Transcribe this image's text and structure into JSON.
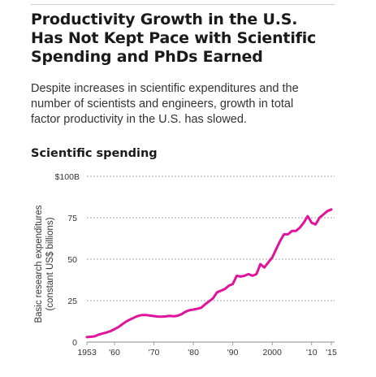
{
  "header": {
    "title_lines": [
      "Productivity Growth in the U.S.",
      "Has Not Kept Pace with Scientific",
      "Spending and PhDs Earned"
    ],
    "subtitle_lines": [
      "Despite increases in scientific expenditures and the",
      "number of scientists and engineers, growth in total",
      "factor productivity in the U.S. has slowed."
    ]
  },
  "colors": {
    "line": "#e0139b",
    "grid": "#888888",
    "text": "#333333"
  },
  "chart_data": {
    "type": "line",
    "title": "Scientific spending",
    "ylabel_lines": [
      "Basic research expenditures",
      "(constant US$ billions)"
    ],
    "ylim": [
      0,
      100
    ],
    "xlim": [
      1953,
      2015
    ],
    "y_ticks": [
      {
        "value": 0,
        "label": "0"
      },
      {
        "value": 25,
        "label": "25"
      },
      {
        "value": 50,
        "label": "50"
      },
      {
        "value": 75,
        "label": "75"
      },
      {
        "value": 100,
        "label": "$100B"
      }
    ],
    "x_ticks": [
      {
        "value": 1953,
        "label": "1953"
      },
      {
        "value": 1960,
        "label": "'60"
      },
      {
        "value": 1970,
        "label": "'70"
      },
      {
        "value": 1980,
        "label": "'80"
      },
      {
        "value": 1990,
        "label": "'90"
      },
      {
        "value": 2000,
        "label": "2000"
      },
      {
        "value": 2010,
        "label": "'10"
      },
      {
        "value": 2015,
        "label": "'15"
      }
    ],
    "grid": "horizontal dashed",
    "series": [
      {
        "x": [
          1953,
          1954,
          1955,
          1956,
          1957,
          1958,
          1959,
          1960,
          1961,
          1962,
          1963,
          1964,
          1965,
          1966,
          1967,
          1968,
          1969,
          1970,
          1971,
          1972,
          1973,
          1974,
          1975,
          1976,
          1977,
          1978,
          1979,
          1980,
          1981,
          1982,
          1983,
          1984,
          1985,
          1986,
          1987,
          1988,
          1989,
          1990,
          1991,
          1992,
          1993,
          1994,
          1995,
          1996,
          1997,
          1998,
          1999,
          2000,
          2001,
          2002,
          2003,
          2004,
          2005,
          2006,
          2007,
          2008,
          2009,
          2010,
          2011,
          2012,
          2013,
          2014,
          2015
        ],
        "values": [
          3,
          3.2,
          3.5,
          4.5,
          5.2,
          5.8,
          6.6,
          7.8,
          9,
          10.8,
          12.4,
          13.7,
          14.8,
          15.8,
          16.3,
          16.3,
          16,
          15.7,
          15.4,
          15.3,
          15.5,
          15.8,
          15.6,
          15.9,
          16.8,
          18.3,
          19.2,
          19.6,
          20.1,
          20.7,
          22.8,
          24.6,
          26.4,
          30,
          31,
          32,
          34,
          35,
          40,
          39.5,
          40,
          41,
          40,
          41,
          47,
          45,
          48,
          51,
          56,
          61,
          65,
          65,
          67,
          67,
          69,
          72,
          76,
          72,
          71,
          75,
          77,
          79,
          80
        ]
      }
    ]
  }
}
